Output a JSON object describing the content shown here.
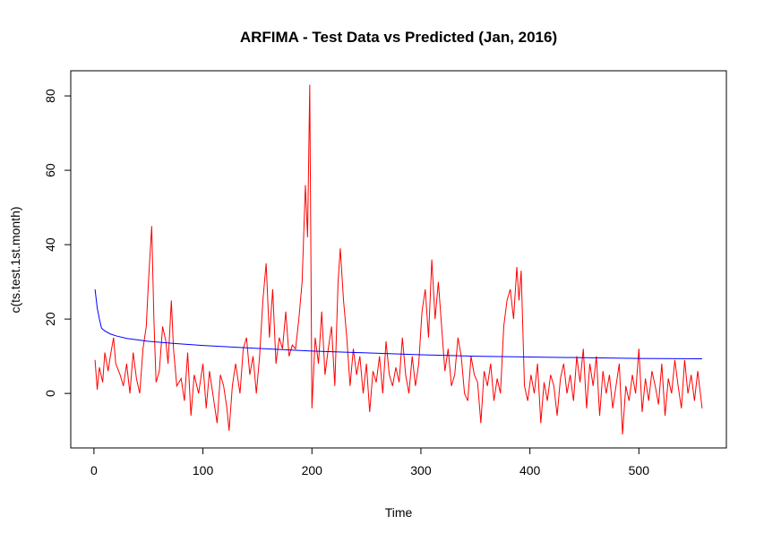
{
  "chart_data": {
    "type": "line",
    "title": "ARFIMA - Test Data vs Predicted (Jan, 2016)",
    "xlabel": "Time",
    "ylabel": "c(ts.test.1st.month)",
    "xlim": [
      -21.28,
      580.28
    ],
    "ylim": [
      -14.66,
      86.76
    ],
    "xticks": [
      0,
      100,
      200,
      300,
      400,
      500
    ],
    "yticks": [
      0,
      20,
      40,
      60,
      80
    ],
    "series": [
      {
        "color": "#ff0000",
        "x": [
          1,
          3,
          5,
          8,
          10,
          13,
          15,
          18,
          20,
          24,
          27,
          30,
          33,
          36,
          39,
          42,
          45,
          48,
          50,
          53,
          55,
          57,
          60,
          63,
          66,
          68,
          71,
          73,
          76,
          80,
          83,
          86,
          89,
          92,
          96,
          100,
          103,
          106,
          110,
          113,
          116,
          119,
          122,
          124,
          127,
          130,
          134,
          137,
          140,
          143,
          146,
          149,
          152,
          155,
          158,
          161,
          164,
          167,
          170,
          173,
          176,
          179,
          182,
          185,
          188,
          191,
          194,
          196,
          198,
          200,
          203,
          206,
          209,
          212,
          215,
          218,
          221,
          224,
          226,
          229,
          232,
          235,
          238,
          241,
          244,
          247,
          250,
          253,
          256,
          259,
          262,
          265,
          268,
          271,
          274,
          277,
          280,
          283,
          286,
          289,
          292,
          295,
          298,
          301,
          304,
          307,
          310,
          313,
          316,
          319,
          322,
          325,
          328,
          331,
          334,
          337,
          340,
          343,
          346,
          349,
          352,
          355,
          358,
          361,
          364,
          367,
          370,
          373,
          376,
          379,
          382,
          385,
          388,
          390,
          392,
          395,
          398,
          401,
          404,
          407,
          410,
          413,
          416,
          419,
          422,
          425,
          428,
          431,
          434,
          437,
          440,
          443,
          446,
          449,
          452,
          455,
          458,
          461,
          464,
          467,
          470,
          473,
          476,
          479,
          482,
          485,
          488,
          491,
          494,
          497,
          500,
          503,
          506,
          509,
          512,
          515,
          518,
          521,
          524,
          527,
          530,
          533,
          536,
          539,
          542,
          545,
          548,
          551,
          554,
          558
        ],
        "values": [
          9,
          1,
          7,
          3,
          11,
          6,
          10,
          15,
          8,
          5,
          2,
          8,
          0,
          11,
          4,
          0,
          12,
          18,
          30,
          45,
          20,
          3,
          6,
          18,
          14,
          8,
          25,
          12,
          2,
          4,
          -2,
          11,
          -6,
          5,
          0,
          8,
          -4,
          6,
          -2,
          -8,
          5,
          2,
          -4,
          -10,
          2,
          8,
          0,
          12,
          15,
          5,
          10,
          0,
          10,
          25,
          35,
          15,
          28,
          8,
          15,
          12,
          22,
          10,
          13,
          12,
          20,
          30,
          56,
          42,
          83,
          -4,
          15,
          8,
          22,
          5,
          12,
          18,
          2,
          30,
          39,
          25,
          15,
          2,
          12,
          5,
          10,
          0,
          8,
          -5,
          6,
          3,
          10,
          0,
          14,
          5,
          2,
          7,
          3,
          15,
          5,
          0,
          10,
          2,
          8,
          22,
          28,
          15,
          36,
          20,
          30,
          18,
          6,
          12,
          2,
          5,
          15,
          10,
          0,
          -2,
          10,
          5,
          3,
          -8,
          6,
          2,
          8,
          -2,
          4,
          0,
          18,
          25,
          28,
          20,
          34,
          25,
          33,
          2,
          -2,
          5,
          0,
          8,
          -8,
          3,
          -2,
          5,
          2,
          -6,
          4,
          8,
          0,
          5,
          -2,
          10,
          3,
          12,
          -4,
          8,
          2,
          10,
          -6,
          6,
          0,
          5,
          -4,
          2,
          8,
          -11,
          2,
          -2,
          5,
          0,
          12,
          -5,
          4,
          -2,
          6,
          2,
          -3,
          8,
          -6,
          4,
          0,
          9,
          2,
          -4,
          9,
          0,
          5,
          -2,
          6,
          -4
        ]
      },
      {
        "color": "#0000ff",
        "x": [
          1,
          3,
          5,
          7,
          10,
          15,
          20,
          30,
          50,
          75,
          100,
          150,
          200,
          250,
          300,
          350,
          400,
          450,
          500,
          558
        ],
        "values": [
          28,
          23,
          20,
          17.5,
          16.8,
          16,
          15.5,
          14.8,
          14,
          13.4,
          12.9,
          12.1,
          11.4,
          10.9,
          10.4,
          10,
          9.8,
          9.6,
          9.4,
          9.3
        ]
      }
    ]
  }
}
